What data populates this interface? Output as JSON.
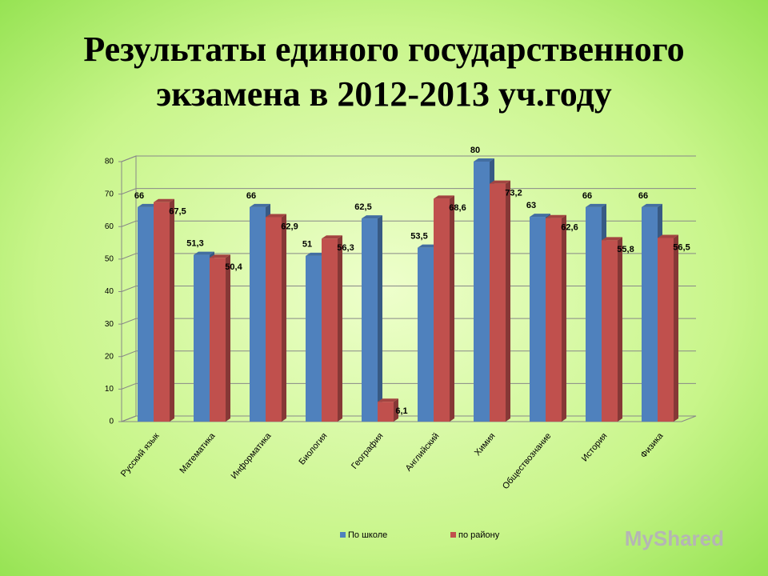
{
  "chart_data": {
    "type": "bar3d",
    "title": "Результаты единого государственного экзамена в 2012-2013 уч.году",
    "categories": [
      "Русский язык",
      "Математика",
      "Информатика",
      "Биология",
      "География",
      "Английский",
      "Химия",
      "Обществознание",
      "История",
      "Физика"
    ],
    "series": [
      {
        "name": "По школе",
        "color": "#4f81bd",
        "values": [
          66,
          51.3,
          66,
          51,
          62.5,
          53.5,
          80,
          63,
          66,
          66
        ],
        "value_labels": [
          "66",
          "51,3",
          "66",
          "51",
          "62,5",
          "53,5",
          "80",
          "63",
          "66",
          "66"
        ]
      },
      {
        "name": "по району",
        "color": "#c0504d",
        "values": [
          67.5,
          50.4,
          62.9,
          56.3,
          6.1,
          68.6,
          73.2,
          62.6,
          55.8,
          56.5
        ],
        "value_labels": [
          "67,5",
          "50,4",
          "62,9",
          "56,3",
          "6,1",
          "68,6",
          "73,2",
          "62,6",
          "55,8",
          "56,5"
        ]
      }
    ],
    "ylim": [
      0,
      80
    ],
    "yticks": [
      0,
      10,
      20,
      30,
      40,
      50,
      60,
      70,
      80
    ],
    "grid": true,
    "legend": "bottom",
    "watermark": "MyShared"
  }
}
